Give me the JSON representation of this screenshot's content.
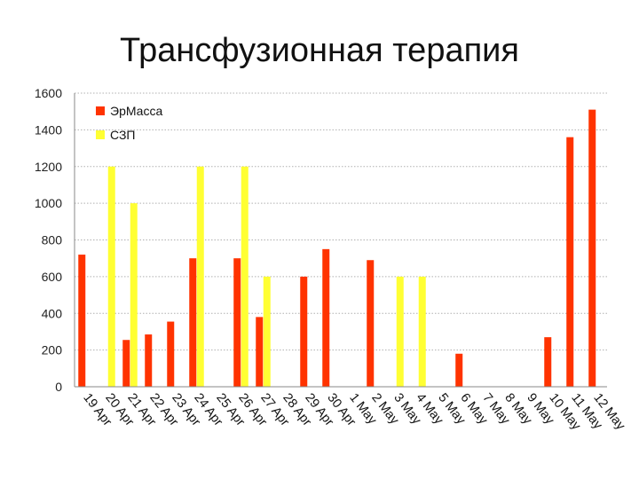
{
  "chart_data": {
    "type": "bar",
    "title": "Трансфузионная терапия",
    "xlabel": "",
    "ylabel": "",
    "ylim": [
      0,
      1600
    ],
    "yticks": [
      0,
      200,
      400,
      600,
      800,
      1000,
      1200,
      1400,
      1600
    ],
    "grid": true,
    "legend_position": "top-left",
    "categories": [
      "19 Apr",
      "20 Apr",
      "21 Apr",
      "22 Apr",
      "23 Apr",
      "24 Apr",
      "25 Apr",
      "26 Apr",
      "27 Apr",
      "28 Apr",
      "29 Apr",
      "30 Apr",
      "1 May",
      "2 May",
      "3 May",
      "4 May",
      "5 May",
      "6 May",
      "7 May",
      "8 May",
      "9 May",
      "10 May",
      "11 May",
      "12 May"
    ],
    "series": [
      {
        "name": "ЭрМасса",
        "color": "#ff3300",
        "values": [
          720,
          0,
          255,
          285,
          355,
          700,
          0,
          700,
          380,
          0,
          600,
          750,
          0,
          690,
          0,
          0,
          0,
          180,
          0,
          0,
          0,
          270,
          1360,
          1510
        ]
      },
      {
        "name": "СЗП",
        "color": "#ffff33",
        "values": [
          0,
          1200,
          1000,
          0,
          0,
          1200,
          0,
          1200,
          600,
          0,
          0,
          0,
          0,
          0,
          600,
          600,
          0,
          0,
          0,
          0,
          0,
          0,
          0,
          0
        ]
      }
    ]
  }
}
